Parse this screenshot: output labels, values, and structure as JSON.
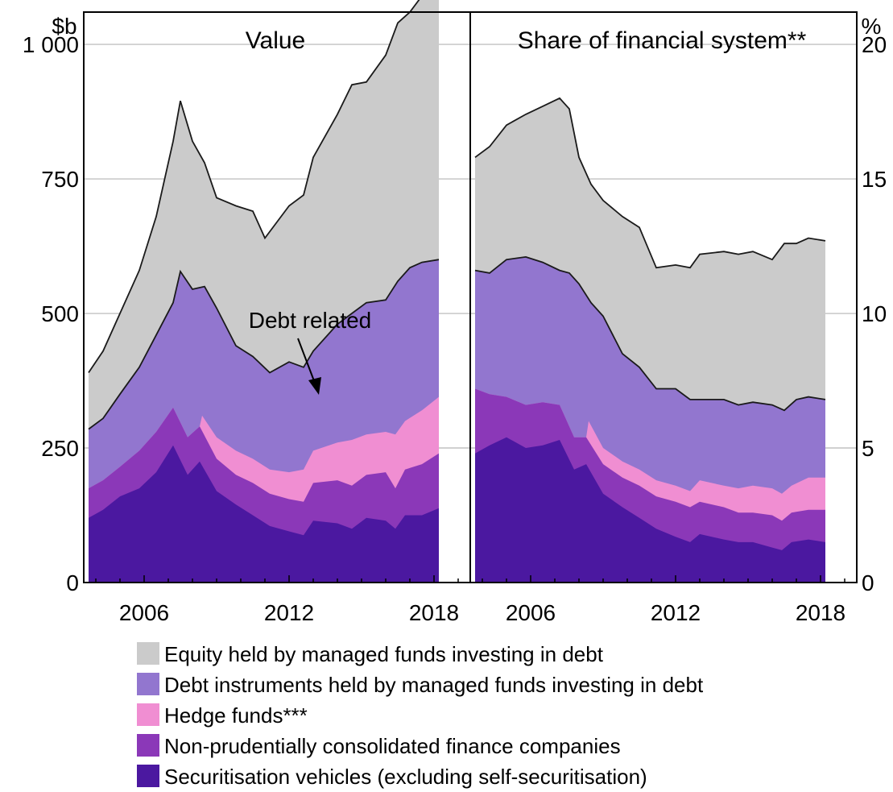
{
  "chart_data": [
    {
      "type": "area",
      "stacked": true,
      "title": "Value",
      "unit": "$b",
      "ylim": [
        0,
        1060
      ],
      "yticks": [
        0,
        250,
        500,
        750,
        1000
      ],
      "ytick_labels": [
        "0",
        "250",
        "500",
        "750",
        "1 000"
      ],
      "xlim": [
        2003.5,
        2019.5
      ],
      "xticks": [
        2006,
        2012,
        2018
      ],
      "xtick_labels": [
        "2006",
        "2012",
        "2018"
      ],
      "grid": true,
      "annotation": {
        "text": "Debt related",
        "x": 2012.8,
        "y": 410
      },
      "series": [
        {
          "key": "sec",
          "points": [
            [
              2003.7,
              120
            ],
            [
              2004.3,
              135
            ],
            [
              2005,
              160
            ],
            [
              2005.8,
              175
            ],
            [
              2006.5,
              205
            ],
            [
              2007.2,
              255
            ],
            [
              2007.8,
              200
            ],
            [
              2008.3,
              225
            ],
            [
              2009,
              170
            ],
            [
              2009.8,
              145
            ],
            [
              2010.5,
              125
            ],
            [
              2011.2,
              105
            ],
            [
              2012,
              95
            ],
            [
              2012.6,
              88
            ],
            [
              2013,
              115
            ],
            [
              2014,
              110
            ],
            [
              2014.6,
              100
            ],
            [
              2015.2,
              120
            ],
            [
              2016,
              115
            ],
            [
              2016.4,
              100
            ],
            [
              2016.8,
              125
            ],
            [
              2017.5,
              125
            ],
            [
              2018.2,
              138
            ]
          ]
        },
        {
          "key": "npf",
          "points": [
            [
              2003.7,
              175
            ],
            [
              2004.3,
              190
            ],
            [
              2005,
              215
            ],
            [
              2005.8,
              245
            ],
            [
              2006.5,
              280
            ],
            [
              2007.2,
              325
            ],
            [
              2007.8,
              270
            ],
            [
              2008.3,
              290
            ],
            [
              2009,
              230
            ],
            [
              2009.8,
              200
            ],
            [
              2010.5,
              185
            ],
            [
              2011.2,
              165
            ],
            [
              2012,
              155
            ],
            [
              2012.6,
              150
            ],
            [
              2013,
              185
            ],
            [
              2014,
              190
            ],
            [
              2014.6,
              180
            ],
            [
              2015.2,
              200
            ],
            [
              2016,
              205
            ],
            [
              2016.4,
              175
            ],
            [
              2016.8,
              210
            ],
            [
              2017.5,
              220
            ],
            [
              2018.2,
              240
            ]
          ]
        },
        {
          "key": "hedge",
          "points": [
            [
              2003.7,
              175
            ],
            [
              2004.3,
              190
            ],
            [
              2005,
              215
            ],
            [
              2005.8,
              245
            ],
            [
              2006.5,
              280
            ],
            [
              2007.2,
              325
            ],
            [
              2007.8,
              270
            ],
            [
              2008.3,
              290
            ],
            [
              2008.4,
              310
            ],
            [
              2009,
              270
            ],
            [
              2009.8,
              245
            ],
            [
              2010.5,
              230
            ],
            [
              2011.2,
              210
            ],
            [
              2012,
              205
            ],
            [
              2012.6,
              210
            ],
            [
              2013,
              245
            ],
            [
              2014,
              260
            ],
            [
              2014.6,
              265
            ],
            [
              2015.2,
              275
            ],
            [
              2016,
              280
            ],
            [
              2016.4,
              275
            ],
            [
              2016.8,
              300
            ],
            [
              2017.5,
              320
            ],
            [
              2018.2,
              345
            ]
          ]
        },
        {
          "key": "debt_instr",
          "points": [
            [
              2003.7,
              285
            ],
            [
              2004.3,
              305
            ],
            [
              2005,
              350
            ],
            [
              2005.8,
              400
            ],
            [
              2006.5,
              460
            ],
            [
              2007.2,
              520
            ],
            [
              2007.5,
              578
            ],
            [
              2008,
              545
            ],
            [
              2008.5,
              550
            ],
            [
              2009,
              510
            ],
            [
              2009.8,
              440
            ],
            [
              2010.5,
              420
            ],
            [
              2011.2,
              390
            ],
            [
              2012,
              410
            ],
            [
              2012.6,
              400
            ],
            [
              2013,
              430
            ],
            [
              2014,
              480
            ],
            [
              2014.6,
              500
            ],
            [
              2015.2,
              520
            ],
            [
              2016,
              525
            ],
            [
              2016.5,
              560
            ],
            [
              2017,
              585
            ],
            [
              2017.5,
              595
            ],
            [
              2018.2,
              600
            ]
          ]
        },
        {
          "key": "equity",
          "points": [
            [
              2003.7,
              390
            ],
            [
              2004.3,
              430
            ],
            [
              2005,
              500
            ],
            [
              2005.8,
              580
            ],
            [
              2006.5,
              680
            ],
            [
              2007.2,
              820
            ],
            [
              2007.5,
              895
            ],
            [
              2008,
              820
            ],
            [
              2008.5,
              780
            ],
            [
              2009,
              715
            ],
            [
              2009.8,
              700
            ],
            [
              2010.5,
              690
            ],
            [
              2011,
              640
            ],
            [
              2011.5,
              670
            ],
            [
              2012,
              700
            ],
            [
              2012.6,
              720
            ],
            [
              2013,
              790
            ],
            [
              2014,
              870
            ],
            [
              2014.6,
              925
            ],
            [
              2015.2,
              930
            ],
            [
              2016,
              980
            ],
            [
              2016.5,
              1040
            ],
            [
              2017,
              1060
            ],
            [
              2017.5,
              1090
            ],
            [
              2018.2,
              1120
            ]
          ]
        }
      ]
    },
    {
      "type": "area",
      "stacked": true,
      "title": "Share of financial system**",
      "unit": "%",
      "ylim": [
        0,
        21.2
      ],
      "yticks": [
        0,
        5,
        10,
        15,
        20
      ],
      "ytick_labels": [
        "0",
        "5",
        "10",
        "15",
        "20"
      ],
      "xlim": [
        2003.5,
        2019.5
      ],
      "xticks": [
        2006,
        2012,
        2018
      ],
      "xtick_labels": [
        "2006",
        "2012",
        "2018"
      ],
      "grid": true,
      "series": [
        {
          "key": "sec",
          "points": [
            [
              2003.7,
              4.8
            ],
            [
              2004.3,
              5.1
            ],
            [
              2005,
              5.4
            ],
            [
              2005.8,
              5.0
            ],
            [
              2006.5,
              5.1
            ],
            [
              2007.2,
              5.3
            ],
            [
              2007.8,
              4.2
            ],
            [
              2008.3,
              4.4
            ],
            [
              2009,
              3.3
            ],
            [
              2009.8,
              2.8
            ],
            [
              2010.5,
              2.4
            ],
            [
              2011.2,
              2.0
            ],
            [
              2012,
              1.7
            ],
            [
              2012.6,
              1.5
            ],
            [
              2013,
              1.8
            ],
            [
              2014,
              1.6
            ],
            [
              2014.6,
              1.5
            ],
            [
              2015.2,
              1.5
            ],
            [
              2016,
              1.3
            ],
            [
              2016.4,
              1.2
            ],
            [
              2016.8,
              1.5
            ],
            [
              2017.5,
              1.6
            ],
            [
              2018.2,
              1.5
            ]
          ]
        },
        {
          "key": "npf",
          "points": [
            [
              2003.7,
              7.2
            ],
            [
              2004.3,
              7.0
            ],
            [
              2005,
              6.9
            ],
            [
              2005.8,
              6.6
            ],
            [
              2006.5,
              6.7
            ],
            [
              2007.2,
              6.6
            ],
            [
              2007.8,
              5.4
            ],
            [
              2008.3,
              5.4
            ],
            [
              2009,
              4.4
            ],
            [
              2009.8,
              3.9
            ],
            [
              2010.5,
              3.6
            ],
            [
              2011.2,
              3.2
            ],
            [
              2012,
              3.0
            ],
            [
              2012.6,
              2.8
            ],
            [
              2013,
              3.0
            ],
            [
              2014,
              2.8
            ],
            [
              2014.6,
              2.6
            ],
            [
              2015.2,
              2.6
            ],
            [
              2016,
              2.5
            ],
            [
              2016.4,
              2.3
            ],
            [
              2016.8,
              2.6
            ],
            [
              2017.5,
              2.7
            ],
            [
              2018.2,
              2.7
            ]
          ]
        },
        {
          "key": "hedge",
          "points": [
            [
              2003.7,
              7.2
            ],
            [
              2004.3,
              7.0
            ],
            [
              2005,
              6.9
            ],
            [
              2005.8,
              6.6
            ],
            [
              2006.5,
              6.7
            ],
            [
              2007.2,
              6.6
            ],
            [
              2007.8,
              5.4
            ],
            [
              2008.3,
              5.4
            ],
            [
              2008.4,
              6.0
            ],
            [
              2009,
              5.0
            ],
            [
              2009.8,
              4.5
            ],
            [
              2010.5,
              4.2
            ],
            [
              2011.2,
              3.8
            ],
            [
              2012,
              3.6
            ],
            [
              2012.6,
              3.4
            ],
            [
              2013,
              3.8
            ],
            [
              2014,
              3.6
            ],
            [
              2014.6,
              3.5
            ],
            [
              2015.2,
              3.6
            ],
            [
              2016,
              3.5
            ],
            [
              2016.4,
              3.3
            ],
            [
              2016.8,
              3.6
            ],
            [
              2017.5,
              3.9
            ],
            [
              2018.2,
              3.9
            ]
          ]
        },
        {
          "key": "debt_instr",
          "points": [
            [
              2003.7,
              11.6
            ],
            [
              2004.3,
              11.5
            ],
            [
              2005,
              12.0
            ],
            [
              2005.8,
              12.1
            ],
            [
              2006.5,
              11.9
            ],
            [
              2007.2,
              11.6
            ],
            [
              2007.6,
              11.5
            ],
            [
              2008,
              11.1
            ],
            [
              2008.5,
              10.4
            ],
            [
              2009,
              9.9
            ],
            [
              2009.8,
              8.5
            ],
            [
              2010.5,
              8.0
            ],
            [
              2011.2,
              7.2
            ],
            [
              2012,
              7.2
            ],
            [
              2012.6,
              6.8
            ],
            [
              2013,
              6.8
            ],
            [
              2014,
              6.8
            ],
            [
              2014.6,
              6.6
            ],
            [
              2015.2,
              6.7
            ],
            [
              2016,
              6.6
            ],
            [
              2016.5,
              6.4
            ],
            [
              2017,
              6.8
            ],
            [
              2017.5,
              6.9
            ],
            [
              2018.2,
              6.8
            ]
          ]
        },
        {
          "key": "equity",
          "points": [
            [
              2003.7,
              15.8
            ],
            [
              2004.3,
              16.2
            ],
            [
              2005,
              17.0
            ],
            [
              2005.8,
              17.4
            ],
            [
              2006.5,
              17.7
            ],
            [
              2007.2,
              18.0
            ],
            [
              2007.6,
              17.6
            ],
            [
              2008,
              15.8
            ],
            [
              2008.5,
              14.8
            ],
            [
              2009,
              14.2
            ],
            [
              2009.8,
              13.6
            ],
            [
              2010.5,
              13.2
            ],
            [
              2011.2,
              11.7
            ],
            [
              2012,
              11.8
            ],
            [
              2012.6,
              11.7
            ],
            [
              2013,
              12.2
            ],
            [
              2014,
              12.3
            ],
            [
              2014.6,
              12.2
            ],
            [
              2015.2,
              12.3
            ],
            [
              2016,
              12.0
            ],
            [
              2016.5,
              12.6
            ],
            [
              2017,
              12.6
            ],
            [
              2017.5,
              12.8
            ],
            [
              2018.2,
              12.7
            ]
          ]
        }
      ]
    }
  ],
  "legend": [
    {
      "key": "equity",
      "label": "Equity held by managed funds investing in debt",
      "color": "#cbcbcb"
    },
    {
      "key": "debt_instr",
      "label": "Debt instruments held by managed funds investing in debt",
      "color": "#9276cf"
    },
    {
      "key": "hedge",
      "label": "Hedge funds***",
      "color": "#f08ed2"
    },
    {
      "key": "npf",
      "label": "Non-prudentially consolidated finance companies",
      "color": "#8b38b8"
    },
    {
      "key": "sec",
      "label": "Securitisation vehicles (excluding self-securitisation)",
      "color": "#4b18a0"
    }
  ]
}
